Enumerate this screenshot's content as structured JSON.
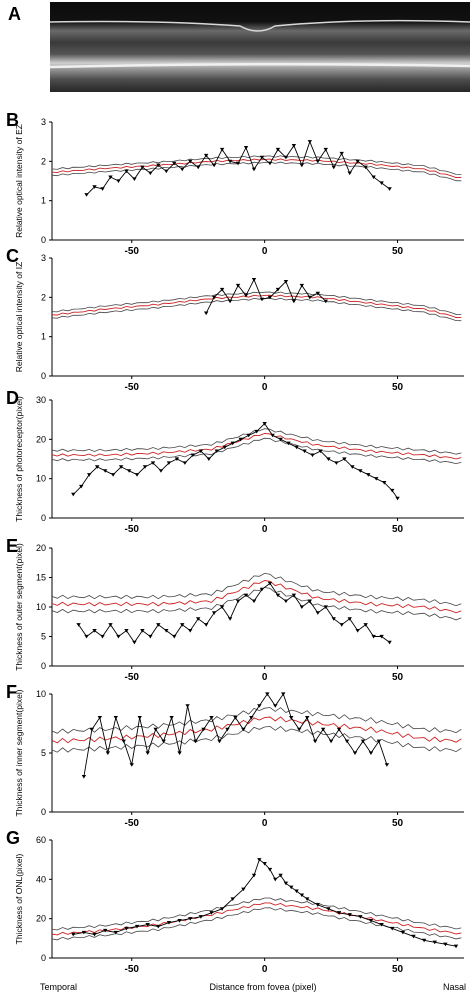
{
  "figure": {
    "xlabel": "Distance from fovea (pixel)",
    "left_label": "Temporal",
    "right_label": "Nasal"
  },
  "image_panel": {
    "letter": "A"
  },
  "colors": {
    "series": "#000000",
    "mean": "#cc2222",
    "bounds": "#444444"
  },
  "chart_data": [
    {
      "letter": "B",
      "type": "line",
      "ylabel": "Relative optical intensity of EZ",
      "xlim": [
        -80,
        75
      ],
      "ylim": [
        0,
        3
      ],
      "yticks": [
        0,
        1,
        2,
        3
      ],
      "xticks": [
        -50,
        0,
        50
      ],
      "xtick_labels": [
        "-50",
        "0",
        "50"
      ],
      "normative": {
        "mean": [
          [
            -80,
            1.72
          ],
          [
            -60,
            1.82
          ],
          [
            -40,
            1.9
          ],
          [
            -20,
            2.0
          ],
          [
            0,
            2.05
          ],
          [
            20,
            2.02
          ],
          [
            40,
            1.93
          ],
          [
            60,
            1.8
          ],
          [
            75,
            1.55
          ]
        ],
        "band": 0.08
      },
      "series": [
        {
          "x": [
            -67,
            -64,
            -61,
            -58,
            -55,
            -52,
            -49,
            -46,
            -43,
            -40,
            -37,
            -34,
            -31,
            -28,
            -25,
            -22,
            -19,
            -16,
            -13,
            -10,
            -7,
            -4,
            -1,
            2,
            5,
            8,
            11,
            14,
            17,
            20,
            23,
            26,
            29,
            32,
            35,
            38,
            41,
            44,
            47
          ],
          "y": [
            1.15,
            1.35,
            1.3,
            1.6,
            1.5,
            1.75,
            1.55,
            1.85,
            1.7,
            1.9,
            1.75,
            1.95,
            1.8,
            2.0,
            1.85,
            2.15,
            1.9,
            2.3,
            2.0,
            1.95,
            2.35,
            1.8,
            2.1,
            1.95,
            2.3,
            2.1,
            2.4,
            1.9,
            2.5,
            2.0,
            2.3,
            1.85,
            2.2,
            1.7,
            2.0,
            1.85,
            1.6,
            1.45,
            1.3
          ]
        }
      ]
    },
    {
      "letter": "C",
      "type": "line",
      "ylabel": "Relative optical intensity of IZ",
      "xlim": [
        -80,
        75
      ],
      "ylim": [
        0,
        3
      ],
      "yticks": [
        0,
        1,
        2,
        3
      ],
      "xticks": [
        -50,
        0,
        50
      ],
      "xtick_labels": [
        "-50",
        "0",
        "50"
      ],
      "normative": {
        "mean": [
          [
            -80,
            1.55
          ],
          [
            -60,
            1.7
          ],
          [
            -40,
            1.82
          ],
          [
            -20,
            1.97
          ],
          [
            0,
            2.05
          ],
          [
            20,
            2.0
          ],
          [
            40,
            1.85
          ],
          [
            60,
            1.7
          ],
          [
            75,
            1.45
          ]
        ],
        "band": 0.08
      },
      "series": [
        {
          "x": [
            -22,
            -19,
            -16,
            -13,
            -10,
            -7,
            -4,
            -1,
            2,
            5,
            8,
            11,
            14,
            17,
            20,
            23
          ],
          "y": [
            1.6,
            2.0,
            2.2,
            1.9,
            2.3,
            2.05,
            2.45,
            1.95,
            2.0,
            2.2,
            2.4,
            1.9,
            2.3,
            2.0,
            2.1,
            1.9
          ]
        }
      ]
    },
    {
      "letter": "D",
      "type": "line",
      "ylabel": "Thickness of photoreceptor(pixel)",
      "xlim": [
        -80,
        75
      ],
      "ylim": [
        0,
        30
      ],
      "yticks": [
        0,
        10,
        20,
        30
      ],
      "xticks": [
        -50,
        0,
        50
      ],
      "xtick_labels": [
        "-50",
        "0",
        "50"
      ],
      "normative": {
        "mean": [
          [
            -80,
            16
          ],
          [
            -60,
            16
          ],
          [
            -40,
            16.5
          ],
          [
            -20,
            17.5
          ],
          [
            0,
            21.5
          ],
          [
            20,
            18.5
          ],
          [
            40,
            17
          ],
          [
            60,
            16
          ],
          [
            75,
            15
          ]
        ],
        "band": 1.2
      },
      "series": [
        {
          "x": [
            -72,
            -69,
            -66,
            -63,
            -60,
            -57,
            -54,
            -51,
            -48,
            -45,
            -42,
            -39,
            -36,
            -33,
            -30,
            -27,
            -24,
            -21,
            -18,
            -15,
            -12,
            -9,
            -6,
            -3,
            0,
            3,
            6,
            9,
            12,
            15,
            18,
            21,
            24,
            27,
            30,
            33,
            36,
            39,
            42,
            45,
            48,
            50
          ],
          "y": [
            6,
            8,
            11,
            13,
            12,
            11,
            13,
            12,
            11,
            13,
            14,
            12,
            14,
            15,
            14,
            16,
            17,
            15,
            17,
            18,
            19,
            20,
            21,
            22,
            24,
            21,
            20,
            19,
            18,
            17,
            16,
            17,
            15,
            14,
            15,
            13,
            12,
            11,
            10,
            9,
            7,
            5
          ]
        }
      ]
    },
    {
      "letter": "E",
      "type": "line",
      "ylabel": "Thickness of outer segment(pixel)",
      "xlim": [
        -80,
        75
      ],
      "ylim": [
        0,
        20
      ],
      "yticks": [
        0,
        5,
        10,
        15,
        20
      ],
      "xticks": [
        -50,
        0,
        50
      ],
      "xtick_labels": [
        "-50",
        "0",
        "50"
      ],
      "normative": {
        "mean": [
          [
            -80,
            10.5
          ],
          [
            -60,
            10.5
          ],
          [
            -40,
            10.5
          ],
          [
            -20,
            11
          ],
          [
            0,
            14.5
          ],
          [
            20,
            11.5
          ],
          [
            40,
            10.5
          ],
          [
            60,
            10
          ],
          [
            75,
            9
          ]
        ],
        "band": 1.2
      },
      "series": [
        {
          "x": [
            -70,
            -67,
            -64,
            -61,
            -58,
            -55,
            -52,
            -49,
            -46,
            -43,
            -40,
            -37,
            -34,
            -31,
            -28,
            -25,
            -22,
            -19,
            -16,
            -13,
            -10,
            -7,
            -4,
            -1,
            2,
            5,
            8,
            11,
            14,
            17,
            20,
            23,
            26,
            29,
            32,
            35,
            38,
            41,
            44,
            47
          ],
          "y": [
            7,
            5,
            6,
            5,
            7,
            5,
            6,
            4,
            6,
            5,
            7,
            6,
            5,
            7,
            6,
            8,
            7,
            9,
            10,
            8,
            11,
            12,
            11,
            13,
            14,
            12,
            11,
            12,
            10,
            11,
            9,
            10,
            8,
            7,
            8,
            6,
            7,
            5,
            5,
            4
          ]
        }
      ]
    },
    {
      "letter": "F",
      "type": "line",
      "ylabel": "Thickness of inner segment(pixel)",
      "xlim": [
        -80,
        75
      ],
      "ylim": [
        0,
        10
      ],
      "yticks": [
        0,
        5,
        10
      ],
      "xticks": [
        -50,
        0,
        50
      ],
      "xtick_labels": [
        "-50",
        "0",
        "50"
      ],
      "normative": {
        "mean": [
          [
            -80,
            6
          ],
          [
            -60,
            6.2
          ],
          [
            -40,
            6.5
          ],
          [
            -20,
            7
          ],
          [
            0,
            8
          ],
          [
            20,
            7.5
          ],
          [
            40,
            7
          ],
          [
            60,
            6.2
          ],
          [
            75,
            6
          ]
        ],
        "band": 0.8
      },
      "series": [
        {
          "x": [
            -68,
            -65,
            -62,
            -59,
            -56,
            -53,
            -50,
            -47,
            -44,
            -41,
            -38,
            -35,
            -32,
            -29,
            -26,
            -23,
            -20,
            -17,
            -14,
            -11,
            -8,
            -5,
            -2,
            1,
            4,
            7,
            10,
            13,
            16,
            19,
            22,
            25,
            28,
            31,
            34,
            37,
            40,
            43,
            46
          ],
          "y": [
            3,
            7,
            8,
            5,
            8,
            6,
            4,
            8,
            5,
            7,
            6,
            8,
            5,
            9,
            6,
            7,
            8,
            6,
            7,
            8,
            7,
            8,
            9,
            10,
            9,
            10,
            8,
            7,
            8,
            6,
            7,
            6,
            7,
            6,
            5,
            6,
            5,
            6,
            4
          ]
        }
      ]
    },
    {
      "letter": "G",
      "type": "line",
      "ylabel": "Thickness of ONL(pixel)",
      "xlim": [
        -80,
        75
      ],
      "ylim": [
        0,
        60
      ],
      "yticks": [
        0,
        20,
        40,
        60
      ],
      "xticks": [
        -50,
        0,
        50
      ],
      "xtick_labels": [
        "-50",
        "0",
        "50"
      ],
      "normative": {
        "mean": [
          [
            -80,
            12
          ],
          [
            -60,
            14
          ],
          [
            -40,
            17
          ],
          [
            -20,
            22
          ],
          [
            0,
            28
          ],
          [
            20,
            25
          ],
          [
            40,
            20
          ],
          [
            60,
            15
          ],
          [
            75,
            12
          ]
        ],
        "band": 2.5
      },
      "series": [
        {
          "x": [
            -72,
            -68,
            -64,
            -60,
            -56,
            -52,
            -48,
            -44,
            -40,
            -36,
            -32,
            -28,
            -24,
            -20,
            -16,
            -12,
            -8,
            -4,
            -2,
            0,
            2,
            4,
            6,
            8,
            10,
            12,
            14,
            16,
            20,
            24,
            28,
            32,
            36,
            40,
            44,
            48,
            52,
            56,
            60,
            64,
            68,
            72
          ],
          "y": [
            12,
            13,
            12,
            14,
            13,
            15,
            16,
            17,
            16,
            18,
            19,
            20,
            21,
            23,
            25,
            30,
            35,
            42,
            50,
            48,
            45,
            40,
            42,
            38,
            36,
            34,
            32,
            30,
            27,
            25,
            23,
            22,
            21,
            19,
            17,
            15,
            13,
            11,
            9,
            8,
            7,
            6
          ]
        }
      ]
    }
  ]
}
